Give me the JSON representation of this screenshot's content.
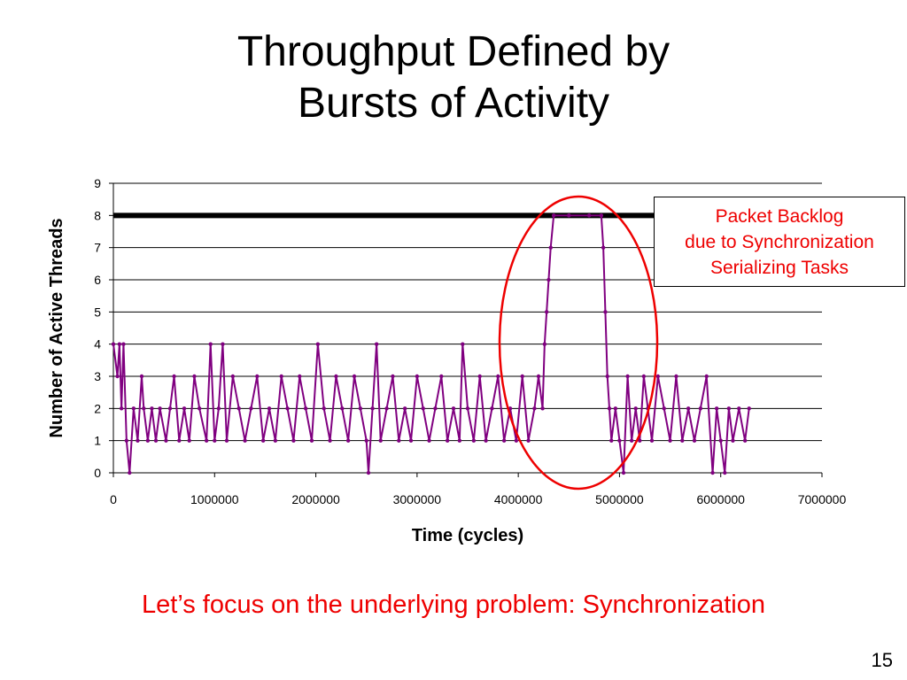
{
  "slide": {
    "title_line1": "Throughput Defined by",
    "title_line2": "Bursts of Activity",
    "callout_line1": "Packet Backlog",
    "callout_line2": "due to Synchronization",
    "callout_line3": "Serializing Tasks",
    "footer": "Let’s focus on the underlying problem: Synchronization",
    "page_number": "15"
  },
  "chart_data": {
    "type": "line",
    "title": "",
    "xlabel": "Time (cycles)",
    "ylabel": "Number of Active Threads",
    "xlim": [
      0,
      7000000
    ],
    "ylim": [
      0,
      9
    ],
    "xticks": [
      "0",
      "1000000",
      "2000000",
      "3000000",
      "4000000",
      "5000000",
      "6000000",
      "7000000"
    ],
    "yticks": [
      "0",
      "1",
      "2",
      "3",
      "4",
      "5",
      "6",
      "7",
      "8",
      "9"
    ],
    "grid": "horizontal",
    "reference_line": {
      "y": 8,
      "color": "#000000"
    },
    "series": [
      {
        "color": "#800080",
        "x": [
          0,
          40000,
          60000,
          80000,
          100000,
          130000,
          160000,
          200000,
          240000,
          280000,
          300000,
          340000,
          380000,
          420000,
          460000,
          520000,
          560000,
          600000,
          650000,
          700000,
          750000,
          800000,
          850000,
          920000,
          960000,
          1000000,
          1040000,
          1080000,
          1120000,
          1180000,
          1240000,
          1300000,
          1360000,
          1420000,
          1480000,
          1540000,
          1600000,
          1660000,
          1720000,
          1780000,
          1840000,
          1900000,
          1960000,
          2020000,
          2080000,
          2140000,
          2200000,
          2260000,
          2320000,
          2380000,
          2440000,
          2500000,
          2520000,
          2560000,
          2600000,
          2640000,
          2700000,
          2760000,
          2820000,
          2880000,
          2940000,
          3000000,
          3060000,
          3120000,
          3180000,
          3240000,
          3300000,
          3360000,
          3420000,
          3450000,
          3500000,
          3560000,
          3620000,
          3680000,
          3740000,
          3800000,
          3860000,
          3920000,
          3980000,
          4040000,
          4100000,
          4160000,
          4200000,
          4240000,
          4260000,
          4280000,
          4300000,
          4320000,
          4350000,
          4500000,
          4700000,
          4820000,
          4840000,
          4860000,
          4880000,
          4900000,
          4920000,
          4960000,
          5000000,
          5040000,
          5080000,
          5120000,
          5160000,
          5200000,
          5240000,
          5280000,
          5320000,
          5380000,
          5440000,
          5500000,
          5560000,
          5620000,
          5680000,
          5740000,
          5800000,
          5860000,
          5920000,
          5960000,
          6000000,
          6040000,
          6080000,
          6120000,
          6180000,
          6240000,
          6280000
        ],
        "y": [
          4,
          3,
          4,
          2,
          4,
          1,
          0,
          2,
          1,
          3,
          2,
          1,
          2,
          1,
          2,
          1,
          2,
          3,
          1,
          2,
          1,
          3,
          2,
          1,
          4,
          1,
          2,
          4,
          1,
          3,
          2,
          1,
          2,
          3,
          1,
          2,
          1,
          3,
          2,
          1,
          3,
          2,
          1,
          4,
          2,
          1,
          3,
          2,
          1,
          3,
          2,
          1,
          0,
          2,
          4,
          1,
          2,
          3,
          1,
          2,
          1,
          3,
          2,
          1,
          2,
          3,
          1,
          2,
          1,
          4,
          2,
          1,
          3,
          1,
          2,
          3,
          1,
          2,
          1,
          3,
          1,
          2,
          3,
          2,
          4,
          5,
          6,
          7,
          8,
          8,
          8,
          8,
          7,
          5,
          3,
          2,
          1,
          2,
          1,
          0,
          3,
          1,
          2,
          1,
          3,
          2,
          1,
          3,
          2,
          1,
          3,
          1,
          2,
          1,
          2,
          3,
          0,
          2,
          1,
          0,
          2,
          1,
          2,
          1,
          2
        ]
      }
    ]
  }
}
